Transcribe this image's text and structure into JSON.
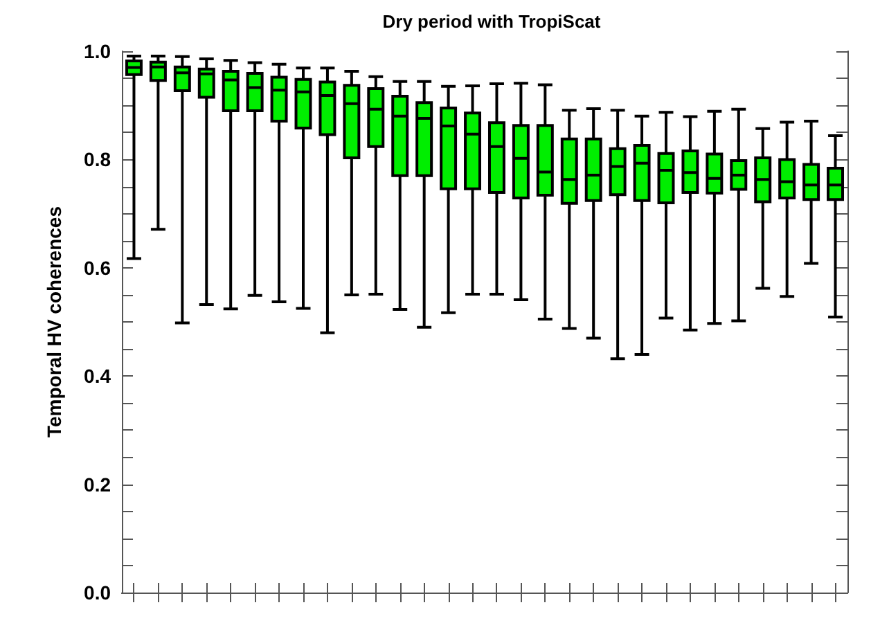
{
  "chart_data": {
    "type": "box",
    "title": "Dry period with TropiScat",
    "ylabel": "Temporal HV coherences",
    "categories": [
      null,
      null,
      null,
      null,
      null,
      null,
      null,
      null,
      null,
      null,
      null,
      null,
      null,
      null,
      null,
      null,
      null,
      null,
      null,
      null,
      null,
      null,
      null,
      null,
      null,
      null,
      null,
      null,
      null,
      null
    ],
    "ylim": [
      0,
      1
    ],
    "yticks": [
      {
        "value": 0,
        "label": "0.0"
      },
      {
        "value": 0.05,
        "label": null
      },
      {
        "value": 0.1,
        "label": null
      },
      {
        "value": 0.15,
        "label": null
      },
      0.2,
      {
        "value": 0.25,
        "label": null
      },
      {
        "value": 0.3,
        "label": null
      },
      {
        "value": 0.35,
        "label": null
      },
      0.4,
      {
        "value": 0.45,
        "label": null
      },
      {
        "value": 0.5,
        "label": null
      },
      {
        "value": 0.55,
        "label": null
      },
      0.6,
      {
        "value": 0.65,
        "label": null
      },
      {
        "value": 0.7,
        "label": null
      },
      {
        "value": 0.75,
        "label": null
      },
      0.8,
      {
        "value": 0.85,
        "label": null
      },
      {
        "value": 0.9,
        "label": null
      },
      {
        "value": 0.95,
        "label": null
      },
      {
        "value": 1,
        "label": "1.0"
      }
    ],
    "tick_labels": "y",
    "grid": false,
    "series": [
      {
        "color": "#00ee00",
        "boxes": [
          {
            "low": 0.617,
            "q1": 0.957,
            "median": 0.97,
            "q3": 0.982,
            "high": 0.991
          },
          {
            "low": 0.671,
            "q1": 0.946,
            "median": 0.971,
            "q3": 0.98,
            "high": 0.991
          },
          {
            "low": 0.498,
            "q1": 0.927,
            "median": 0.96,
            "q3": 0.971,
            "high": 0.99
          },
          {
            "low": 0.532,
            "q1": 0.915,
            "median": 0.958,
            "q3": 0.967,
            "high": 0.986
          },
          {
            "low": 0.524,
            "q1": 0.89,
            "median": 0.947,
            "q3": 0.963,
            "high": 0.983
          },
          {
            "low": 0.549,
            "q1": 0.89,
            "median": 0.933,
            "q3": 0.959,
            "high": 0.979
          },
          {
            "low": 0.537,
            "q1": 0.871,
            "median": 0.928,
            "q3": 0.952,
            "high": 0.976
          },
          {
            "low": 0.525,
            "q1": 0.858,
            "median": 0.925,
            "q3": 0.948,
            "high": 0.969
          },
          {
            "low": 0.48,
            "q1": 0.846,
            "median": 0.918,
            "q3": 0.943,
            "high": 0.969
          },
          {
            "low": 0.55,
            "q1": 0.803,
            "median": 0.903,
            "q3": 0.937,
            "high": 0.963
          },
          {
            "low": 0.551,
            "q1": 0.824,
            "median": 0.893,
            "q3": 0.931,
            "high": 0.953
          },
          {
            "low": 0.523,
            "q1": 0.77,
            "median": 0.88,
            "q3": 0.917,
            "high": 0.944
          },
          {
            "low": 0.49,
            "q1": 0.77,
            "median": 0.876,
            "q3": 0.905,
            "high": 0.944
          },
          {
            "low": 0.517,
            "q1": 0.746,
            "median": 0.862,
            "q3": 0.895,
            "high": 0.935
          },
          {
            "low": 0.551,
            "q1": 0.746,
            "median": 0.847,
            "q3": 0.886,
            "high": 0.936
          },
          {
            "low": 0.551,
            "q1": 0.739,
            "median": 0.824,
            "q3": 0.868,
            "high": 0.94
          },
          {
            "low": 0.541,
            "q1": 0.729,
            "median": 0.802,
            "q3": 0.863,
            "high": 0.941
          },
          {
            "low": 0.505,
            "q1": 0.734,
            "median": 0.777,
            "q3": 0.863,
            "high": 0.938
          },
          {
            "low": 0.488,
            "q1": 0.719,
            "median": 0.763,
            "q3": 0.838,
            "high": 0.891
          },
          {
            "low": 0.47,
            "q1": 0.724,
            "median": 0.771,
            "q3": 0.838,
            "high": 0.894
          },
          {
            "low": 0.432,
            "q1": 0.735,
            "median": 0.787,
            "q3": 0.82,
            "high": 0.891
          },
          {
            "low": 0.44,
            "q1": 0.724,
            "median": 0.793,
            "q3": 0.826,
            "high": 0.88
          },
          {
            "low": 0.507,
            "q1": 0.72,
            "median": 0.78,
            "q3": 0.811,
            "high": 0.887
          },
          {
            "low": 0.485,
            "q1": 0.739,
            "median": 0.776,
            "q3": 0.816,
            "high": 0.879
          },
          {
            "low": 0.497,
            "q1": 0.738,
            "median": 0.765,
            "q3": 0.81,
            "high": 0.889
          },
          {
            "low": 0.502,
            "q1": 0.745,
            "median": 0.771,
            "q3": 0.798,
            "high": 0.893
          },
          {
            "low": 0.562,
            "q1": 0.722,
            "median": 0.763,
            "q3": 0.803,
            "high": 0.857
          },
          {
            "low": 0.547,
            "q1": 0.729,
            "median": 0.759,
            "q3": 0.8,
            "high": 0.869
          },
          {
            "low": 0.608,
            "q1": 0.726,
            "median": 0.753,
            "q3": 0.791,
            "high": 0.871
          },
          {
            "low": 0.509,
            "q1": 0.726,
            "median": 0.753,
            "q3": 0.784,
            "high": 0.844
          }
        ]
      }
    ]
  }
}
